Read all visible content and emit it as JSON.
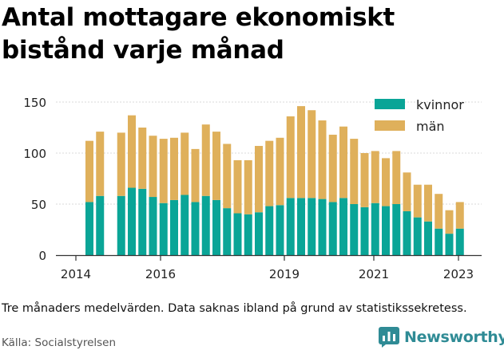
{
  "title": "Antal mottagare ekonomiskt bistånd varje månad",
  "note": "Tre månaders medelvärden. Data saknas ibland på grund av statistikssekretess.",
  "source": "Källa: Socialstyrelsen",
  "brand": {
    "name": "Newsworthy",
    "color": "#2f8b95",
    "icon": "bar-chart-logo-icon"
  },
  "colors": {
    "kvinnor": "#0aa597",
    "man": "#dfb05b",
    "axis": "#333333",
    "grid": "#d9d9d9"
  },
  "chart_data": {
    "type": "bar",
    "stacked": true,
    "x_ticks": [
      "2014",
      "2016",
      "2019",
      "2021",
      "2023"
    ],
    "y_ticks": [
      "0",
      "50",
      "100",
      "150"
    ],
    "ylim": [
      0,
      160
    ],
    "grid": true,
    "legend_position": "top-right",
    "series": [
      {
        "name": "kvinnor",
        "color": "#0aa597",
        "values": [
          52,
          58,
          null,
          58,
          66,
          65,
          57,
          51,
          54,
          59,
          52,
          58,
          54,
          46,
          41,
          40,
          42,
          48,
          49,
          56,
          56,
          56,
          55,
          52,
          56,
          50,
          47,
          51,
          48,
          50,
          43,
          37,
          33,
          26,
          21,
          26
        ]
      },
      {
        "name": "män",
        "color": "#dfb05b",
        "values": [
          60,
          63,
          null,
          62,
          71,
          60,
          60,
          63,
          61,
          61,
          52,
          70,
          67,
          63,
          52,
          53,
          65,
          64,
          66,
          80,
          90,
          86,
          77,
          66,
          70,
          64,
          53,
          51,
          47,
          52,
          38,
          32,
          36,
          34,
          23,
          26
        ]
      }
    ]
  }
}
